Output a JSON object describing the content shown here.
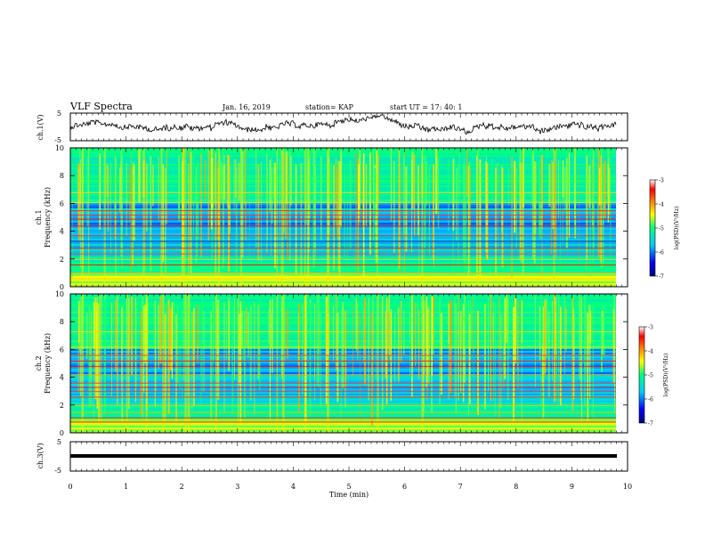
{
  "header": {
    "title": "VLF Spectra",
    "date": "Jan. 16, 2019",
    "station": "station= KAP",
    "start": "start  UT =   17: 40: 1"
  },
  "chart_data": [
    {
      "type": "line",
      "panel": "ch1-waveform",
      "ylabel": "ch.1(V)",
      "ylim": [
        -5,
        5
      ],
      "yticks": [
        "5",
        "-5"
      ],
      "xlim": [
        0,
        10
      ]
    },
    {
      "type": "heatmap",
      "panel": "ch1-spectrogram",
      "ylabel": "ch.1",
      "ylabel2": "Frequency (kHz)",
      "ylim": [
        0,
        10
      ],
      "yticks": [
        "0",
        "2",
        "4",
        "6",
        "8",
        "10"
      ],
      "xlim": [
        0,
        10
      ],
      "data_extent_min": 9.8,
      "colorbar": {
        "label": "log(PSD)(V²/Hz)",
        "range": [
          -7,
          -3
        ],
        "ticks": [
          "-3",
          "-4",
          "-5",
          "-6",
          "-7"
        ]
      }
    },
    {
      "type": "heatmap",
      "panel": "ch2-spectrogram",
      "ylabel": "ch.2",
      "ylabel2": "Frequency (kHz)",
      "ylim": [
        0,
        10
      ],
      "yticks": [
        "0",
        "2",
        "4",
        "6",
        "8",
        "10"
      ],
      "xlim": [
        0,
        10
      ],
      "data_extent_min": 9.8,
      "colorbar": {
        "label": "log(PSD)(V²/Hz)",
        "range": [
          -7,
          -3
        ],
        "ticks": [
          "-3",
          "-4",
          "-5",
          "-6",
          "-7"
        ]
      }
    },
    {
      "type": "line",
      "panel": "ch3-waveform",
      "ylabel": "ch.3(V)",
      "ylim": [
        -5,
        5
      ],
      "yticks": [
        "5",
        "-5"
      ],
      "xlim": [
        0,
        10
      ],
      "xlabel": "Time (min)",
      "xticks": [
        "0",
        "1",
        "2",
        "3",
        "4",
        "5",
        "6",
        "7",
        "8",
        "9",
        "10"
      ]
    }
  ],
  "colors": {
    "waveform": "#000000",
    "colormap": [
      "#000080",
      "#0000ff",
      "#00c8ff",
      "#00ff80",
      "#ffff00",
      "#ff8000",
      "#ff0000",
      "#ffffff"
    ]
  }
}
